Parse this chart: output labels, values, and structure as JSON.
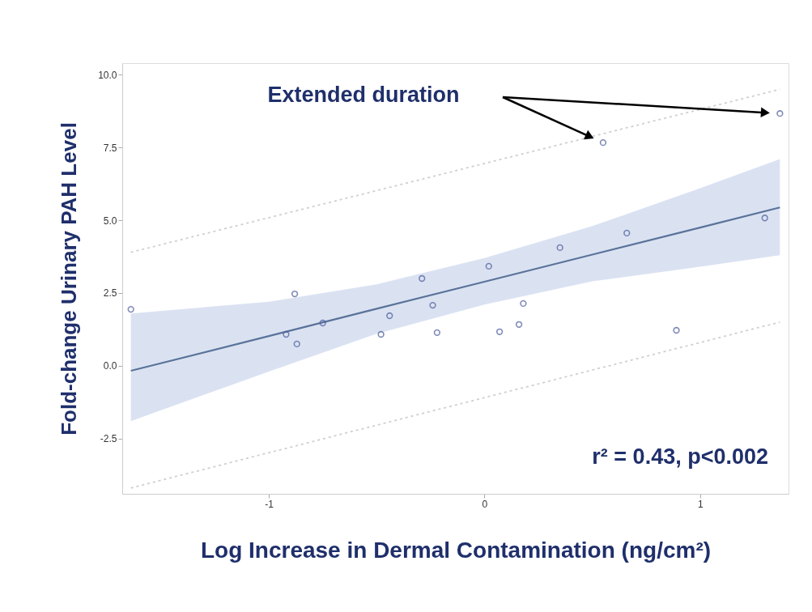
{
  "chart_data": {
    "type": "scatter",
    "xlabel": "Log Increase in Dermal Contamination (ng/cm²)",
    "ylabel": "Fold-change Urinary PAH Level",
    "xlim": [
      -1.68,
      1.41
    ],
    "xticks": [
      -1,
      0,
      1
    ],
    "ylim": [
      -4.4,
      10.4
    ],
    "yticks": [
      {
        "value": -2.5,
        "label": "-2.5"
      },
      {
        "value": 0,
        "label": "0.0"
      },
      {
        "value": 2.5,
        "label": "2.5"
      },
      {
        "value": 5,
        "label": "5.0"
      },
      {
        "value": 7.5,
        "label": "7.5"
      },
      {
        "value": 10,
        "label": "10.0"
      }
    ],
    "grid": false,
    "series": [
      {
        "type": "scatter",
        "marker": "circle",
        "color": "#4a5a9a",
        "x": [
          -1.64,
          -0.88,
          -0.92,
          -0.87,
          -0.75,
          -0.29,
          -0.44,
          -0.48,
          -0.24,
          -0.22,
          0.02,
          0.07,
          0.16,
          0.18,
          0.35,
          0.55,
          0.66,
          0.89,
          1.3,
          1.37
        ],
        "values": [
          1.94,
          2.47,
          1.08,
          0.75,
          1.47,
          3.0,
          1.72,
          1.08,
          2.08,
          1.14,
          3.42,
          1.17,
          1.42,
          2.14,
          4.06,
          7.67,
          4.56,
          1.22,
          5.08,
          8.67
        ]
      },
      {
        "type": "line",
        "line_style": "solid",
        "color": "#5a7399",
        "x": [
          -1.64,
          -1,
          -0.5,
          0,
          0.5,
          1,
          1.37
        ],
        "values": [
          -0.17,
          1.02,
          1.96,
          2.89,
          3.82,
          4.75,
          5.44
        ],
        "lower": [
          -1.9,
          -0.2,
          1.1,
          2.1,
          2.9,
          3.4,
          3.8
        ],
        "upper": [
          1.8,
          2.2,
          2.8,
          3.7,
          4.8,
          6.1,
          7.1
        ]
      },
      {
        "type": "line",
        "line_style": "dotted",
        "color": "#cfcfcf",
        "x": [
          -1.64,
          1.37
        ],
        "values": [
          3.9,
          9.5
        ]
      },
      {
        "type": "line",
        "line_style": "dotted",
        "color": "#cfcfcf",
        "x": [
          -1.64,
          1.37
        ],
        "values": [
          -4.2,
          1.5
        ]
      }
    ],
    "annotations": [
      "Extended duration",
      "r² = 0.43, p<0.002"
    ]
  }
}
